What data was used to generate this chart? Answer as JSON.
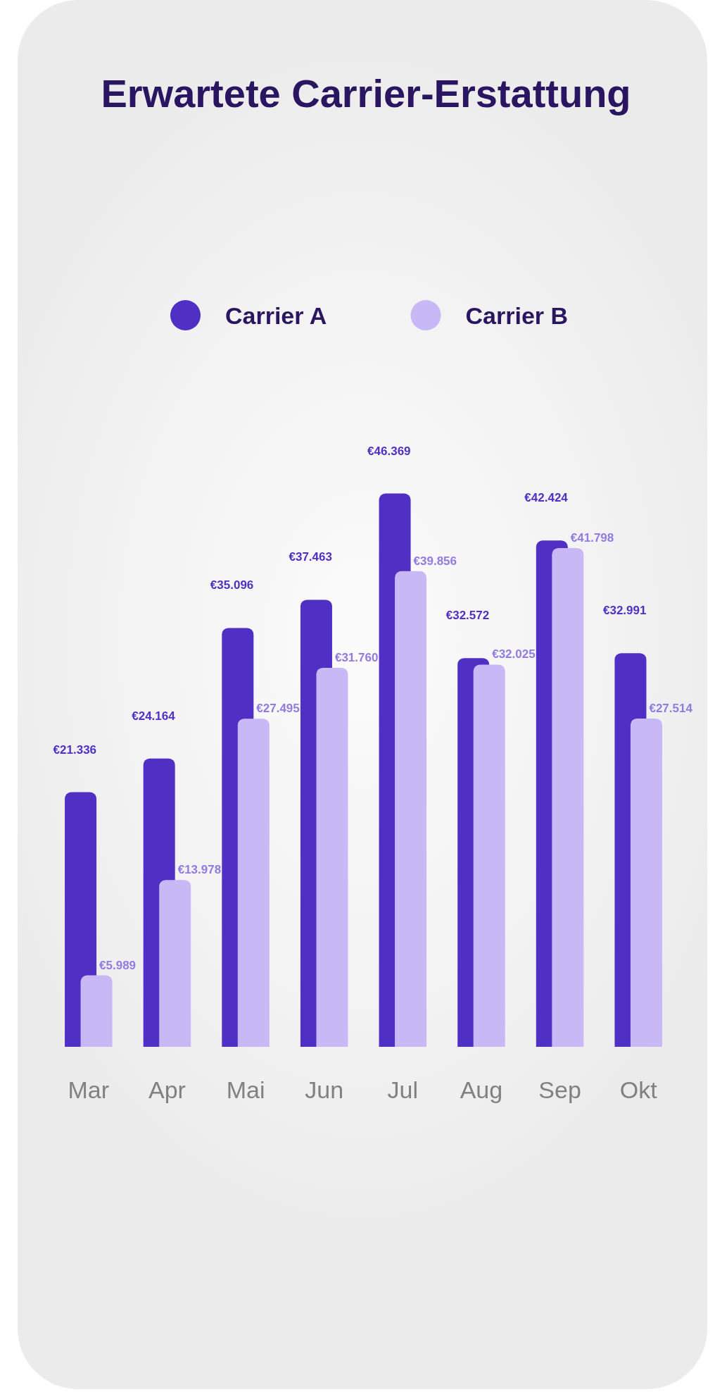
{
  "chart_data": {
    "type": "bar",
    "title": "Erwartete Carrier-Erstattung",
    "categories": [
      "Mar",
      "Apr",
      "Mai",
      "Jun",
      "Jul",
      "Aug",
      "Sep",
      "Okt"
    ],
    "series": [
      {
        "name": "Carrier A",
        "color": "#4f2fc4",
        "values": [
          21336,
          24164,
          35096,
          37463,
          46369,
          32572,
          42424,
          32991
        ],
        "value_labels": [
          "€21.336",
          "€24.164",
          "€35.096",
          "€37.463",
          "€46.369",
          "€32.572",
          "€42.424",
          "€32.991"
        ]
      },
      {
        "name": "Carrier B",
        "color": "#c8b8f6",
        "values": [
          5989,
          13978,
          27495,
          31760,
          39856,
          32025,
          41798,
          27514
        ],
        "value_labels": [
          "€5.989",
          "€13.978",
          "€27.495",
          "€31.760",
          "€39.856",
          "€32.025",
          "€41.798",
          "€27.514"
        ]
      }
    ],
    "legend": "top"
  }
}
